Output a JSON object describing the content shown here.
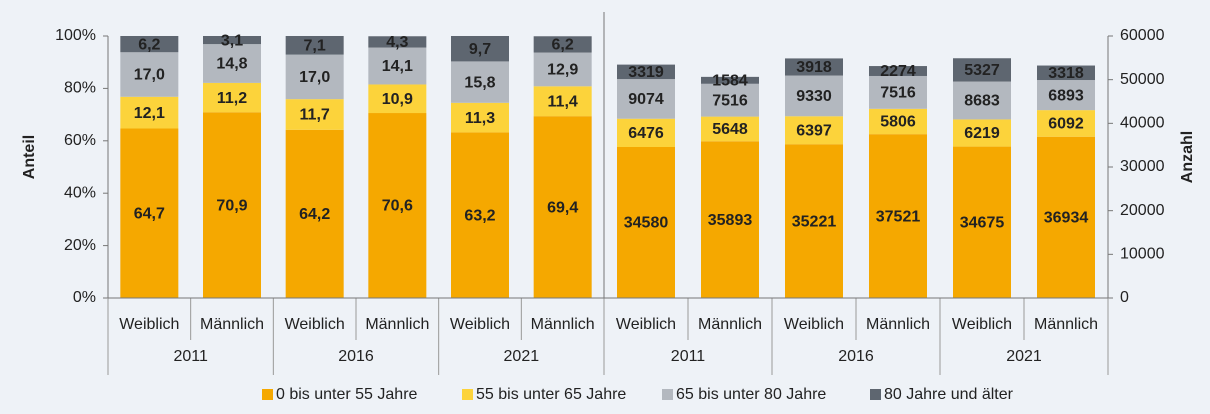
{
  "chart_data": [
    {
      "type": "stacked_bar",
      "ylabel": "Anteil",
      "groups": [
        "2011",
        "2016",
        "2021"
      ],
      "categories": [
        "Weiblich",
        "Männlich",
        "Weiblich",
        "Männlich",
        "Weiblich",
        "Männlich"
      ],
      "ylim": [
        0,
        100
      ],
      "yticks": [
        {
          "value": 0,
          "label": "0%"
        },
        {
          "value": 20,
          "label": "20%"
        },
        {
          "value": 40,
          "label": "40%"
        },
        {
          "value": 60,
          "label": "60%"
        },
        {
          "value": 80,
          "label": "80%"
        },
        {
          "value": 100,
          "label": "100%"
        }
      ],
      "series": [
        {
          "name": "0 bis unter 55 Jahre",
          "color": "#f5a800",
          "values": [
            64.7,
            70.9,
            64.2,
            70.6,
            63.2,
            69.4
          ],
          "value_labels": [
            "64,7",
            "70,9",
            "64,2",
            "70,6",
            "63,2",
            "69,4"
          ]
        },
        {
          "name": "55 bis unter 65 Jahre",
          "color": "#fcd33b",
          "values": [
            12.1,
            11.2,
            11.7,
            10.9,
            11.3,
            11.4
          ],
          "value_labels": [
            "12,1",
            "11,2",
            "11,7",
            "10,9",
            "11,3",
            "11,4"
          ]
        },
        {
          "name": "65 bis unter 80 Jahre",
          "color": "#b3b8bf",
          "values": [
            17.0,
            14.8,
            17.0,
            14.1,
            15.8,
            12.9
          ],
          "value_labels": [
            "17,0",
            "14,8",
            "17,0",
            "14,1",
            "15,8",
            "12,9"
          ]
        },
        {
          "name": "80 Jahre und älter",
          "color": "#5e6670",
          "values": [
            6.2,
            3.1,
            7.1,
            4.3,
            9.7,
            6.2
          ],
          "value_labels": [
            "6,2",
            "3,1",
            "7,1",
            "4,3",
            "9,7",
            "6,2"
          ]
        }
      ]
    },
    {
      "type": "stacked_bar",
      "ylabel": "Anzahl",
      "groups": [
        "2011",
        "2016",
        "2021"
      ],
      "categories": [
        "Weiblich",
        "Männlich",
        "Weiblich",
        "Männlich",
        "Weiblich",
        "Männlich"
      ],
      "ylim": [
        0,
        60000
      ],
      "yticks": [
        0,
        10000,
        20000,
        30000,
        40000,
        50000,
        60000
      ],
      "series": [
        {
          "color": "#f5a800",
          "values": [
            34580,
            35893,
            35221,
            37521,
            34675,
            36934
          ]
        },
        {
          "color": "#fcd33b",
          "values": [
            6476,
            5648,
            6397,
            5806,
            6219,
            6092
          ]
        },
        {
          "color": "#b3b8bf",
          "values": [
            9074,
            7516,
            9330,
            7516,
            8683,
            6893
          ]
        },
        {
          "color": "#5e6670",
          "values": [
            3319,
            1584,
            3918,
            2274,
            5327,
            3318
          ]
        }
      ]
    }
  ]
}
